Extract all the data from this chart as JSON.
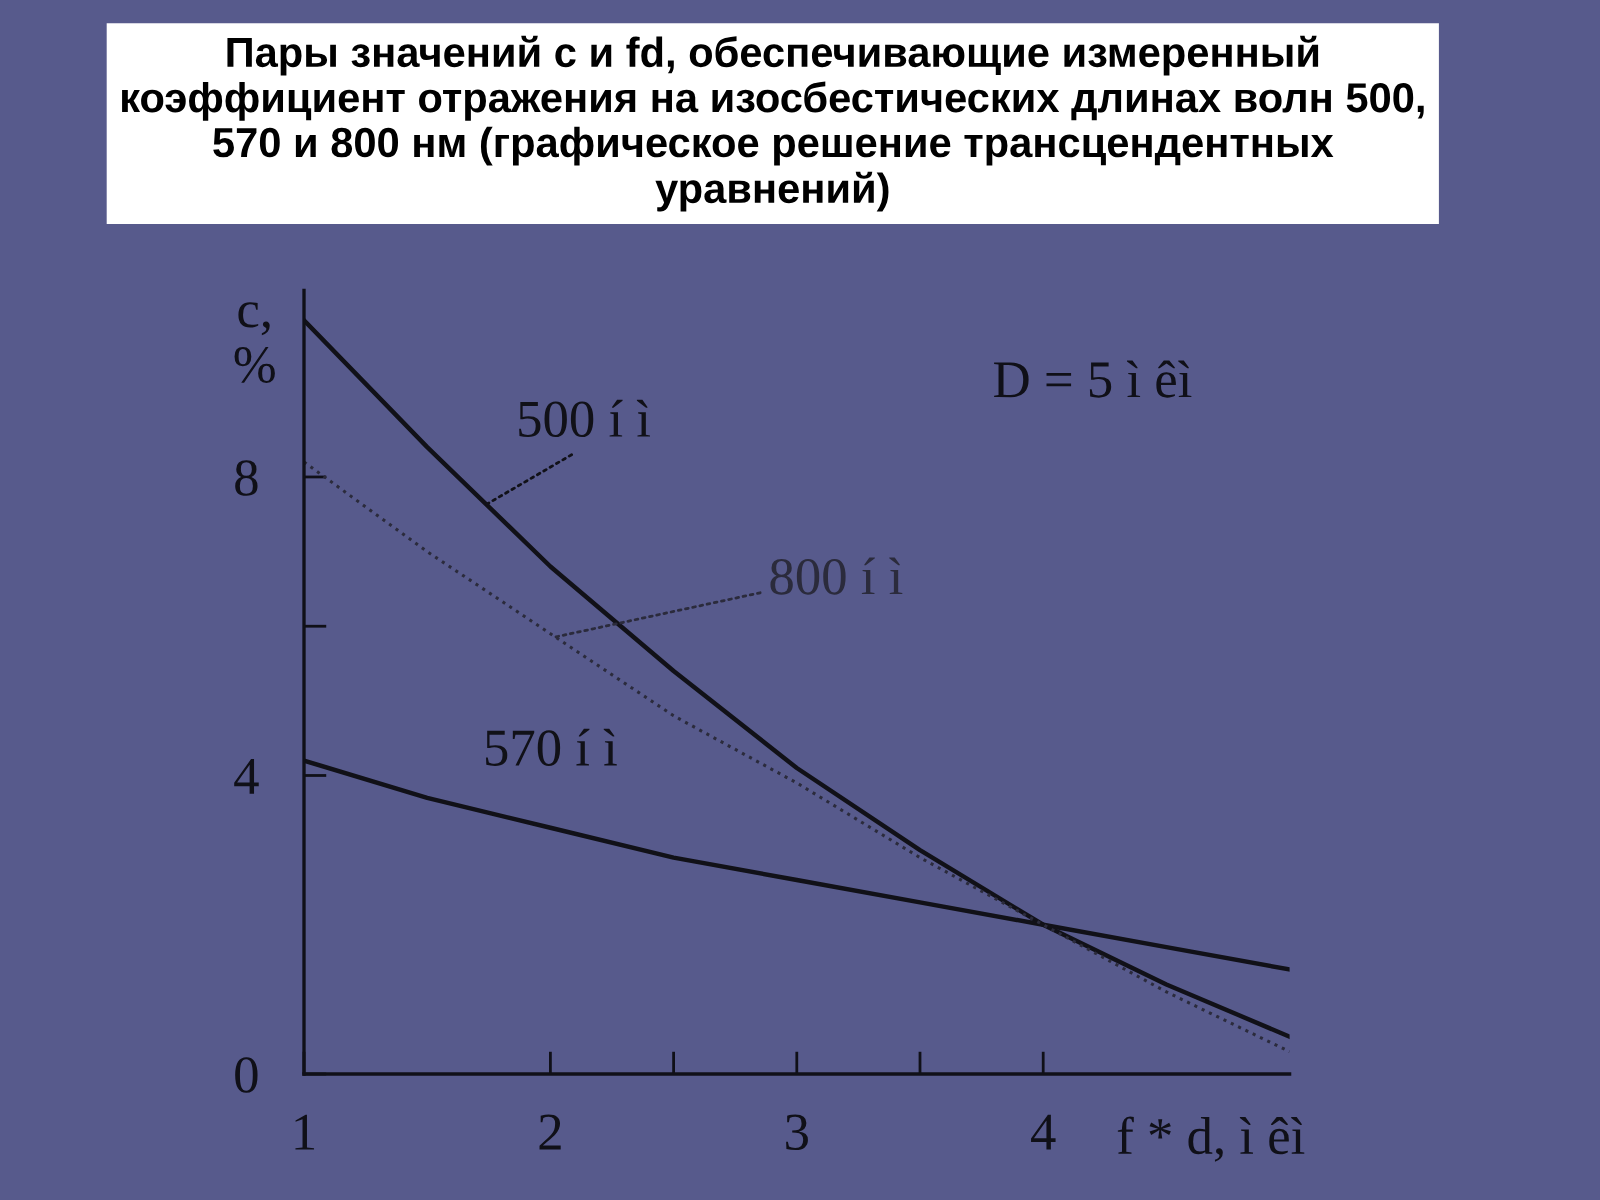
{
  "chart_data": {
    "type": "line",
    "title": "Пары значений c и fd, обеспечивающие измеренный коэффициент отражения на изосбестических длинах волн 500, 570 и 800 нм (графическое решение трансцендентных уравнений)",
    "xlabel": "f * d, ì êì",
    "ylabel": "c, %",
    "x": [
      1,
      1.5,
      2,
      2.5,
      3,
      3.5,
      4,
      4.5,
      5
    ],
    "series": [
      {
        "name": "500 í ì",
        "color": "#111118",
        "line_style": "solid",
        "values": [
          10.1,
          8.4,
          6.8,
          5.4,
          4.1,
          3.0,
          2.0,
          1.2,
          0.5
        ]
      },
      {
        "name": "570 í ì",
        "color": "#111118",
        "line_style": "solid",
        "values": [
          4.2,
          3.7,
          3.3,
          2.9,
          2.6,
          2.3,
          2.0,
          1.7,
          1.4
        ]
      },
      {
        "name": "800 í ì",
        "color": "#2b2b3c",
        "line_style": "dotted",
        "values": [
          8.2,
          7.0,
          5.9,
          4.8,
          3.9,
          2.9,
          2.0,
          1.1,
          0.3
        ]
      }
    ],
    "xlim": [
      1,
      5
    ],
    "ylim": [
      0,
      10.5
    ],
    "xticks": [
      1,
      2,
      {
        "value": 2.5,
        "label": null
      },
      3,
      {
        "value": 3.5,
        "label": null
      },
      4
    ],
    "yticks": [
      0,
      4,
      {
        "value": 6,
        "label": null
      },
      8
    ],
    "annotations": [
      "D = 5 ì êì"
    ]
  }
}
